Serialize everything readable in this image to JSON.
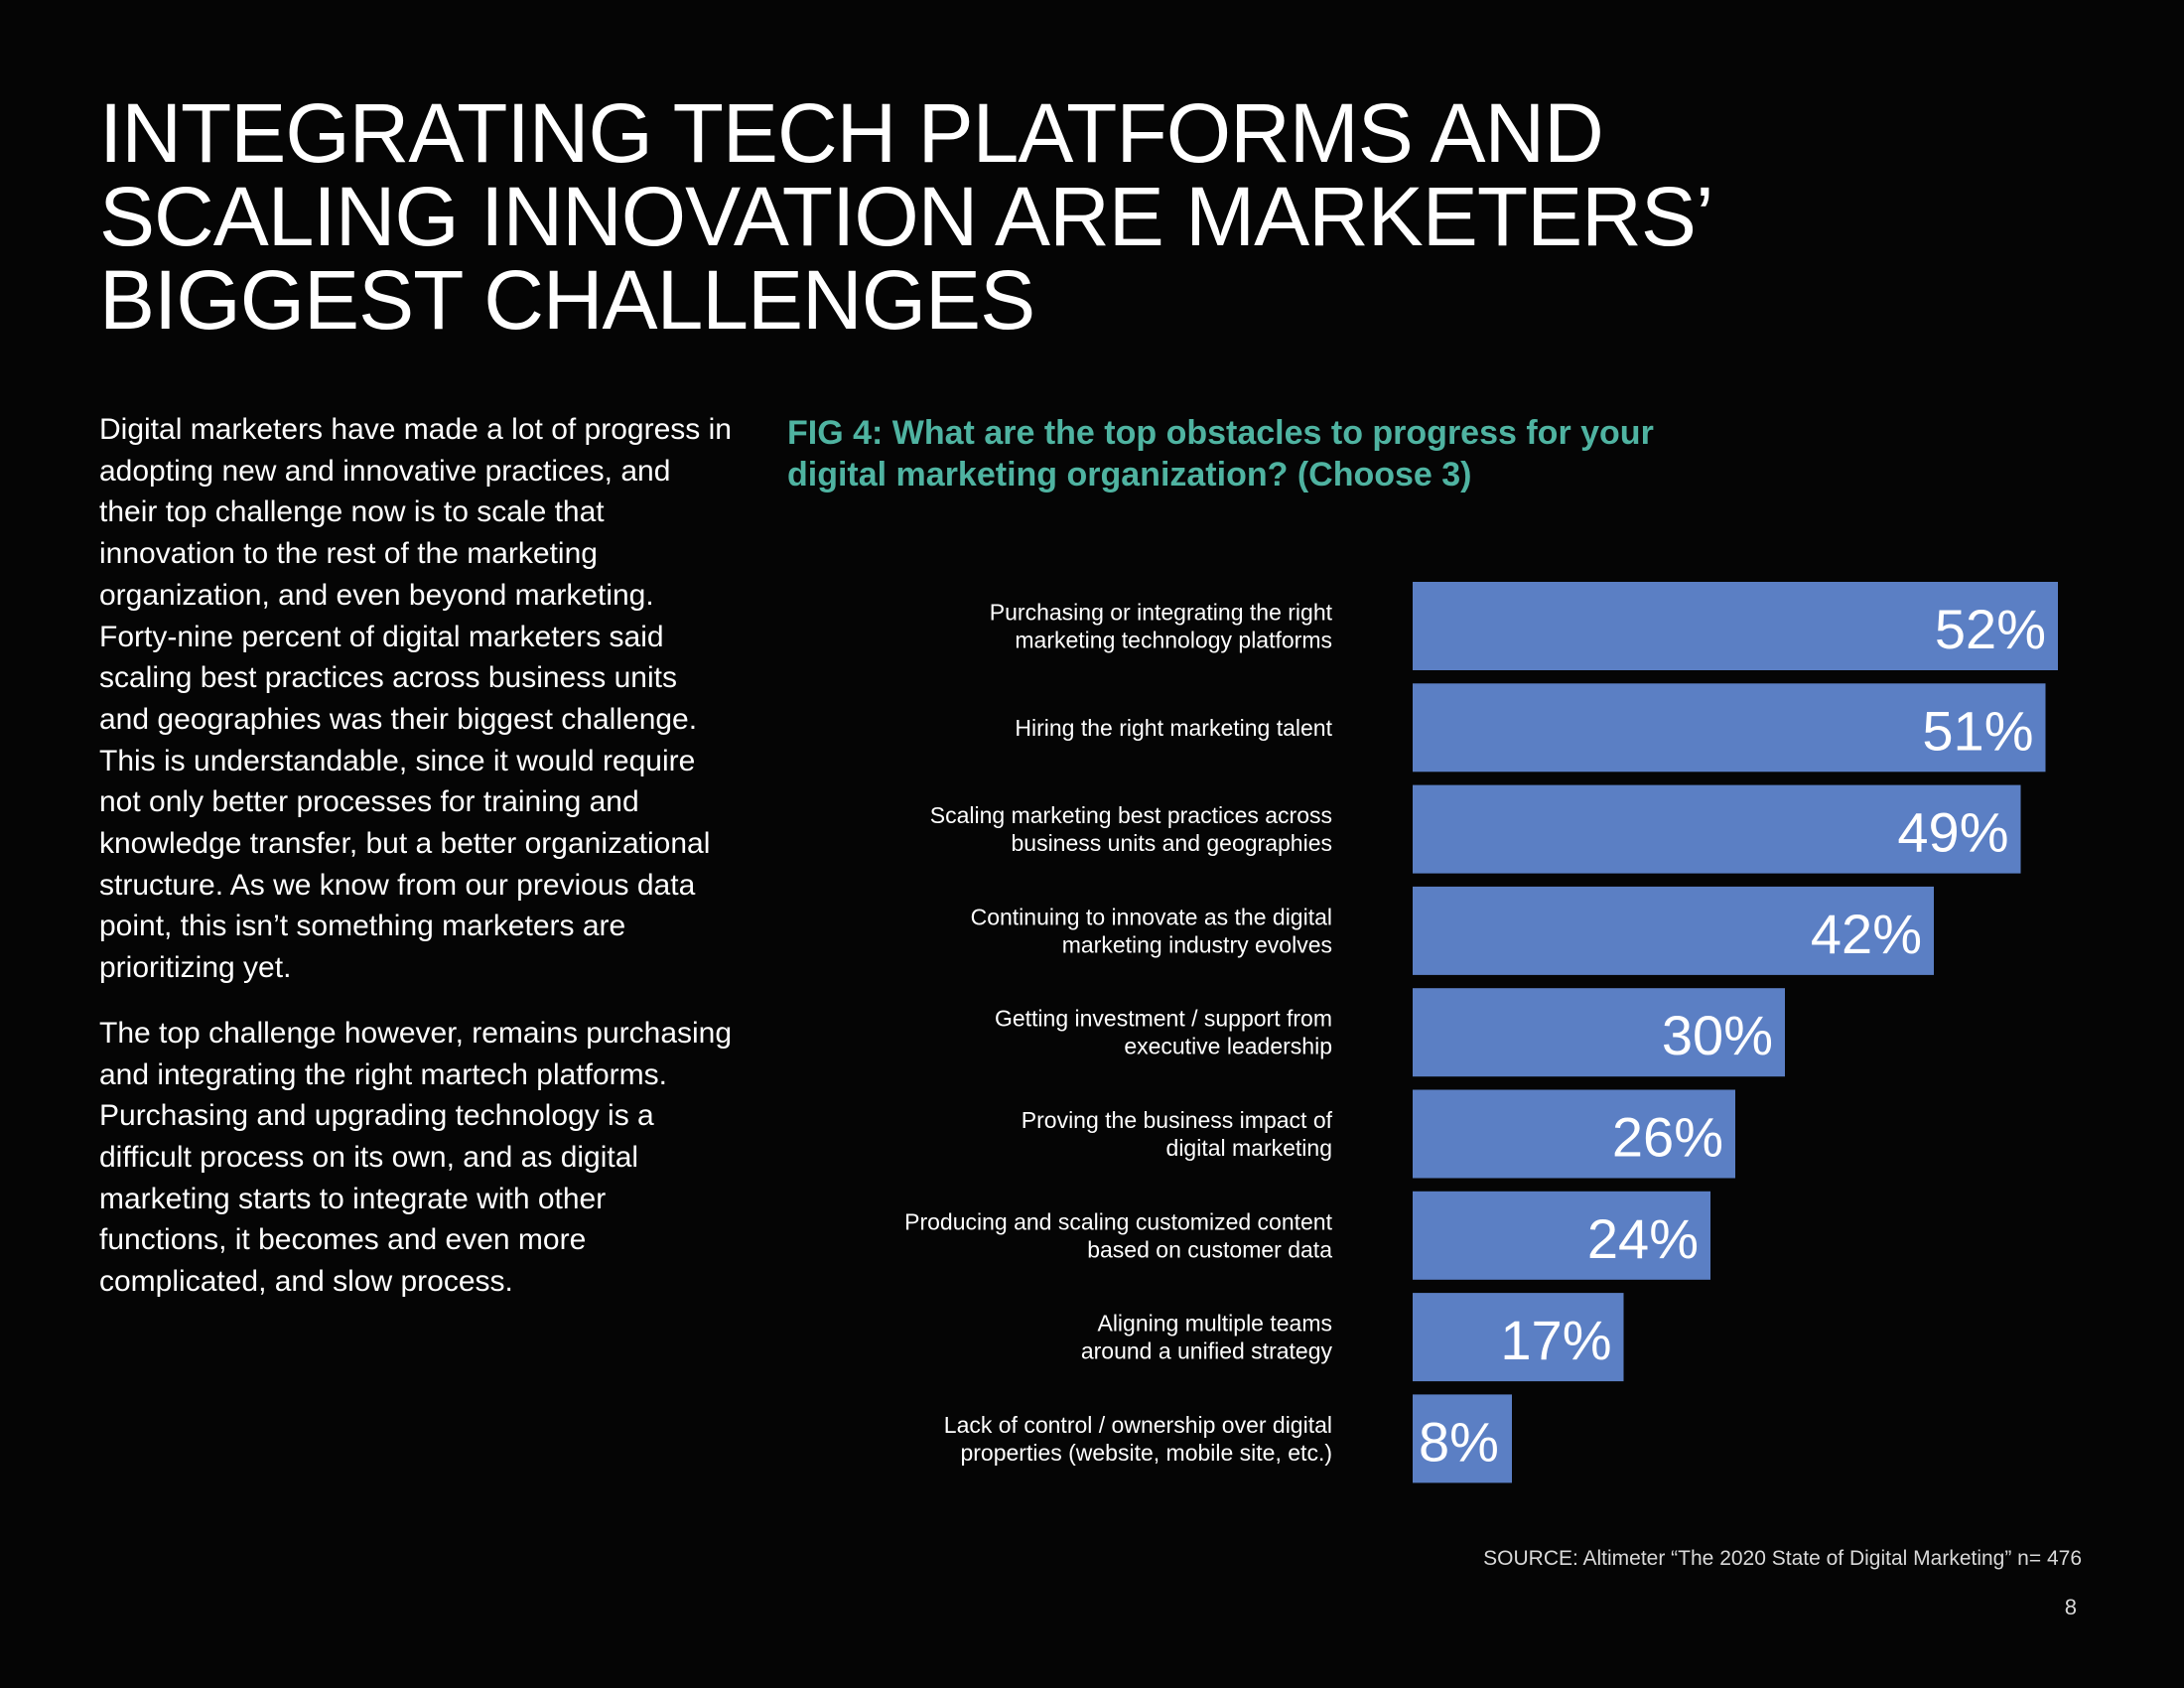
{
  "page": {
    "title_lines": [
      "INTEGRATING TECH PLATFORMS AND",
      "SCALING INNOVATION ARE MARKETERS’",
      "BIGGEST CHALLENGES"
    ],
    "paragraphs": [
      "Digital marketers have made a lot of progress in adopting new and innovative practices, and their top challenge now is to scale that innovation to the rest of the marketing organization, and even beyond marketing. Forty-nine percent of digital marketers said scaling best practices across business units and geographies was their biggest challenge. This is understandable, since it would require not only better processes for training and knowledge transfer, but a better organizational structure. As we know from our previous data point, this isn’t something marketers are prioritizing yet.",
      "The top challenge however, remains purchasing and integrating the right martech platforms. Purchasing and upgrading technology is a difficult process on its own, and as digital marketing starts to integrate with other functions, it becomes and even more complicated, and slow process."
    ],
    "source": "SOURCE: Altimeter “The 2020 State of Digital Marketing” n= 476",
    "page_number": "8"
  },
  "colors": {
    "background": "#050505",
    "bar": "#5b7fc4",
    "figure_title": "#4fb3a1",
    "text": "#ffffff"
  },
  "chart_data": {
    "type": "bar",
    "orientation": "horizontal",
    "title_lines": [
      "FIG 4: What are the top obstacles to progress for your",
      "digital marketing organization? (Choose 3)"
    ],
    "categories": [
      [
        "Purchasing or integrating the right",
        "marketing technology platforms"
      ],
      [
        "Hiring the right marketing talent"
      ],
      [
        "Scaling marketing best practices across",
        "business units and geographies"
      ],
      [
        "Continuing to innovate as the digital",
        "marketing industry evolves"
      ],
      [
        "Getting investment / support from",
        "executive leadership"
      ],
      [
        "Proving the business impact of",
        "digital marketing"
      ],
      [
        "Producing and scaling customized content",
        "based on customer data"
      ],
      [
        "Aligning multiple teams",
        "around a unified strategy"
      ],
      [
        "Lack of control / ownership over digital",
        "properties (website, mobile site, etc.)"
      ]
    ],
    "values": [
      52,
      51,
      49,
      42,
      30,
      26,
      24,
      17,
      8
    ],
    "value_labels": [
      "52%",
      "51%",
      "49%",
      "42%",
      "30%",
      "26%",
      "24%",
      "17%",
      "8%"
    ],
    "unit": "%",
    "xlim": [
      0,
      100
    ],
    "grid": false,
    "legend": "none"
  }
}
